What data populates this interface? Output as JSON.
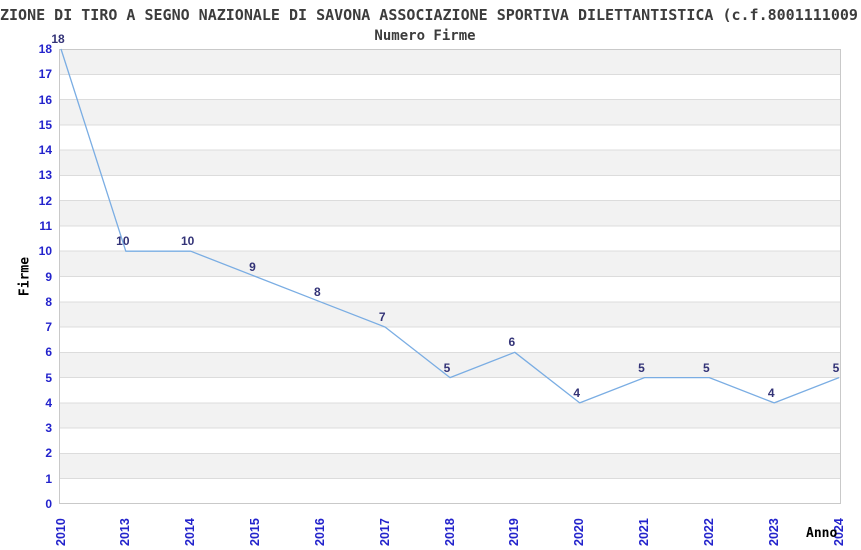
{
  "chart_data": {
    "type": "line",
    "title": "ZIONE DI TIRO A SEGNO NAZIONALE DI SAVONA ASSOCIAZIONE SPORTIVA DILETTANTISTICA (c.f.8001111009",
    "subtitle": "Numero Firme",
    "xlabel": "Anno",
    "ylabel": "Firme",
    "categories": [
      "2010",
      "2013",
      "2014",
      "2015",
      "2016",
      "2017",
      "2018",
      "2019",
      "2020",
      "2021",
      "2022",
      "2023",
      "2024"
    ],
    "values": [
      18,
      10,
      10,
      9,
      8,
      7,
      5,
      6,
      4,
      5,
      5,
      4,
      5
    ],
    "ylim": [
      0,
      18
    ],
    "ytick_interval": 1,
    "data_labels_visible": true,
    "legend": "none",
    "grid": "horizontal-gridlines-with-alternating-stripes",
    "colors": {
      "line": "#7aade3",
      "tick_labels": "#2323cc",
      "data_labels": "#333377",
      "stripe": "#f2f2f2",
      "gridline": "#dcdcdc",
      "plot_border": "#c9c9c9",
      "title_text": "#3c3c3c",
      "axis_title_text": "#000000",
      "background": "#ffffff"
    }
  }
}
